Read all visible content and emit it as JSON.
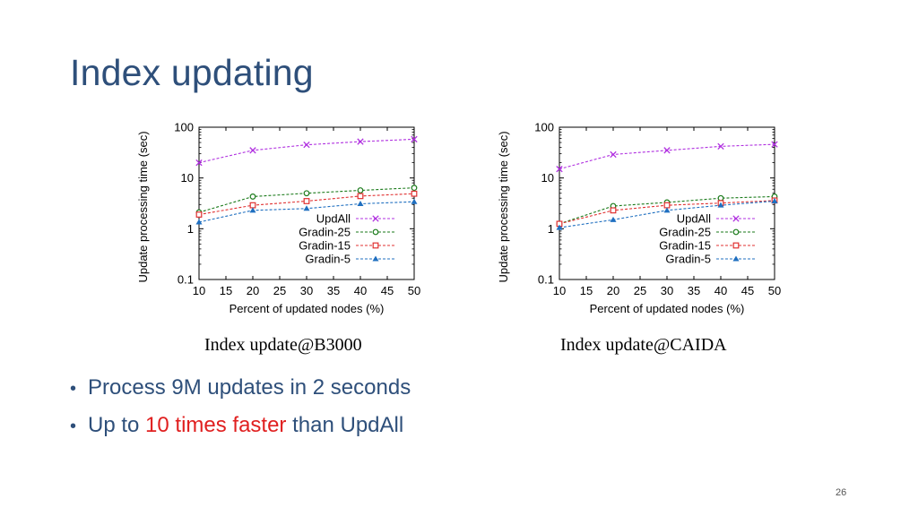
{
  "slide": {
    "title": "Index updating",
    "bullets": [
      {
        "text": "Process 9M updates in 2 seconds"
      },
      {
        "pre": "Up to ",
        "highlight": "10 times faster",
        "post": " than UpdAll"
      }
    ],
    "page_number": "26",
    "highlight_color": "#e02020",
    "text_color": "#2e4f7a"
  },
  "chart_data": [
    {
      "type": "line",
      "caption": "Index update@B3000",
      "xlabel": "Percent of updated nodes (%)",
      "ylabel": "Update processing time (sec)",
      "yscale": "log",
      "ylim": [
        0.1,
        100
      ],
      "xlim": [
        10,
        50
      ],
      "xticks": [
        "10",
        "15",
        "20",
        "25",
        "30",
        "35",
        "40",
        "45",
        "50"
      ],
      "yticks": [
        "0.1",
        "1",
        "10",
        "100"
      ],
      "legend_position": "bottom-right",
      "x": [
        10,
        20,
        30,
        40,
        50
      ],
      "series": [
        {
          "name": "UpdAll",
          "color": "#b030e0",
          "marker": "x",
          "values": [
            20,
            35,
            45,
            52,
            58
          ]
        },
        {
          "name": "Gradin-25",
          "color": "#1a7a1a",
          "marker": "circle",
          "values": [
            2.1,
            4.3,
            5.0,
            5.7,
            6.4
          ]
        },
        {
          "name": "Gradin-15",
          "color": "#e03030",
          "marker": "square",
          "values": [
            1.9,
            2.9,
            3.5,
            4.4,
            4.9
          ]
        },
        {
          "name": "Gradin-5",
          "color": "#1f6fc0",
          "marker": "triangle",
          "values": [
            1.35,
            2.3,
            2.5,
            3.1,
            3.4
          ]
        }
      ]
    },
    {
      "type": "line",
      "caption": "Index update@CAIDA",
      "xlabel": "Percent of updated nodes (%)",
      "ylabel": "Update processing time (sec)",
      "yscale": "log",
      "ylim": [
        0.1,
        100
      ],
      "xlim": [
        10,
        50
      ],
      "xticks": [
        "10",
        "15",
        "20",
        "25",
        "30",
        "35",
        "40",
        "45",
        "50"
      ],
      "yticks": [
        "0.1",
        "1",
        "10",
        "100"
      ],
      "legend_position": "bottom-right",
      "x": [
        10,
        20,
        30,
        40,
        50
      ],
      "series": [
        {
          "name": "UpdAll",
          "color": "#b030e0",
          "marker": "x",
          "values": [
            15,
            29,
            35,
            42,
            46
          ]
        },
        {
          "name": "Gradin-25",
          "color": "#1a7a1a",
          "marker": "circle",
          "values": [
            1.25,
            2.8,
            3.3,
            4.0,
            4.3
          ]
        },
        {
          "name": "Gradin-15",
          "color": "#e03030",
          "marker": "square",
          "values": [
            1.25,
            2.3,
            2.9,
            3.2,
            3.6
          ]
        },
        {
          "name": "Gradin-5",
          "color": "#1f6fc0",
          "marker": "triangle",
          "values": [
            1.05,
            1.5,
            2.3,
            2.9,
            3.5
          ]
        }
      ]
    }
  ]
}
